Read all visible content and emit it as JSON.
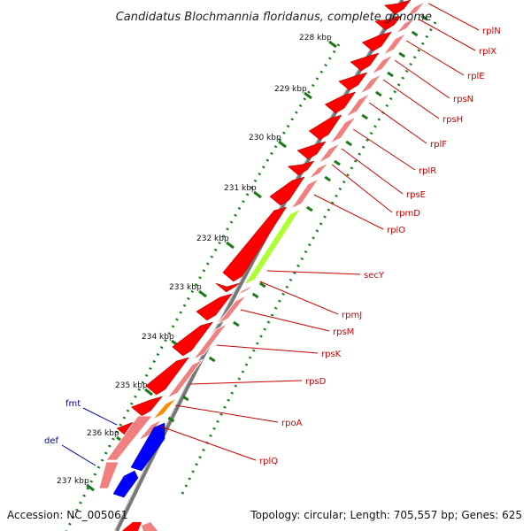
{
  "title": "Candidatus Blochmannia floridanus, complete genome",
  "accession": "Accession: NC_005061",
  "summary": "Topology: circular; Length: 705,557 bp; Genes: 625",
  "ruler_labels": [
    "228 kbp",
    "229 kbp",
    "230 kbp",
    "231 kbp",
    "232 kbp",
    "233 kbp",
    "234 kbp",
    "235 kbp",
    "236 kbp",
    "237 kbp"
  ],
  "plus_strand_genes": [
    "rplN",
    "rplX",
    "rplE",
    "rpsN",
    "rpsH",
    "rplF",
    "rplR",
    "rpsE",
    "rpmD",
    "rplO",
    "secY",
    "rpmJ",
    "rpsM",
    "rpsK",
    "rpsD",
    "rpoA",
    "rplQ"
  ],
  "minus_strand_genes": [
    "fmt",
    "def"
  ],
  "colors": {
    "gene_red": "#ff0000",
    "cds_pink": "#f08080",
    "secY_green": "#adff2f",
    "rpoA_orange": "#ff8c00",
    "minus_blue": "#0000ff",
    "backbone_grey": "#777777",
    "tick_green": "#1a7a1a",
    "label_red": "#cc0000",
    "label_blue": "#0000aa"
  }
}
